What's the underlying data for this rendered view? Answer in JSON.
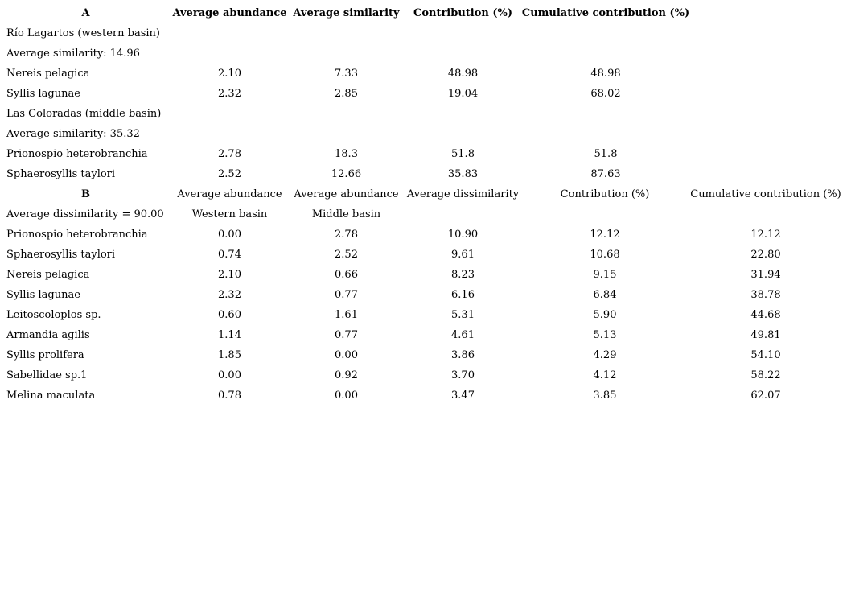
{
  "table_a": {
    "header": {
      "label": "A",
      "cols": [
        "Average abundance",
        "Average similarity",
        "Contribution (%)",
        "Cumulative contribution (%)"
      ]
    },
    "sections": [
      {
        "group": "Río Lagartos (western basin)",
        "subtitle": "Average similarity: 14.96",
        "rows": [
          {
            "species": "Nereis pelagica",
            "values": [
              "2.10",
              "7.33",
              "48.98",
              "48.98"
            ]
          },
          {
            "species": "Syllis lagunae",
            "values": [
              "2.32",
              "2.85",
              "19.04",
              "68.02"
            ]
          }
        ]
      },
      {
        "group": "Las Coloradas (middle basin)",
        "subtitle": "Average similarity: 35.32",
        "rows": [
          {
            "species": "Prionospio heterobranchia",
            "values": [
              "2.78",
              "18.3",
              "51.8",
              "51.8"
            ]
          },
          {
            "species": "Sphaerosyllis taylori",
            "values": [
              "2.52",
              "12.66",
              "35.83",
              "87.63"
            ]
          }
        ]
      }
    ]
  },
  "table_b": {
    "header": {
      "label": "B",
      "cols": [
        "Average abundance",
        "Average abundance",
        "Average dissimilarity",
        "Contribution (%)",
        "Cumulative contribution (%)"
      ]
    },
    "subheader": {
      "label": "Average dissimilarity = 90.00",
      "col1": "Western basin",
      "col2": "Middle basin"
    },
    "rows": [
      {
        "species": "Prionospio heterobranchia",
        "values": [
          "0.00",
          "2.78",
          "10.90",
          "12.12",
          "12.12"
        ]
      },
      {
        "species": "Sphaerosyllis taylori",
        "values": [
          "0.74",
          "2.52",
          "9.61",
          "10.68",
          "22.80"
        ]
      },
      {
        "species": "Nereis pelagica",
        "values": [
          "2.10",
          "0.66",
          "8.23",
          "9.15",
          "31.94"
        ]
      },
      {
        "species": "Syllis lagunae",
        "values": [
          "2.32",
          "0.77",
          "6.16",
          "6.84",
          "38.78"
        ]
      },
      {
        "species": "Leitoscoloplos sp.",
        "values": [
          "0.60",
          "1.61",
          "5.31",
          "5.90",
          "44.68"
        ]
      },
      {
        "species": "Armandia agilis",
        "values": [
          "1.14",
          "0.77",
          "4.61",
          "5.13",
          "49.81"
        ]
      },
      {
        "species": "Syllis prolifera",
        "values": [
          "1.85",
          "0.00",
          "3.86",
          "4.29",
          "54.10"
        ]
      },
      {
        "species": "Sabellidae sp.1",
        "values": [
          "0.00",
          "0.92",
          "3.70",
          "4.12",
          "58.22"
        ]
      },
      {
        "species": "Melina maculata",
        "values": [
          "0.78",
          "0.00",
          "3.47",
          "3.85",
          "62.07"
        ]
      }
    ]
  }
}
